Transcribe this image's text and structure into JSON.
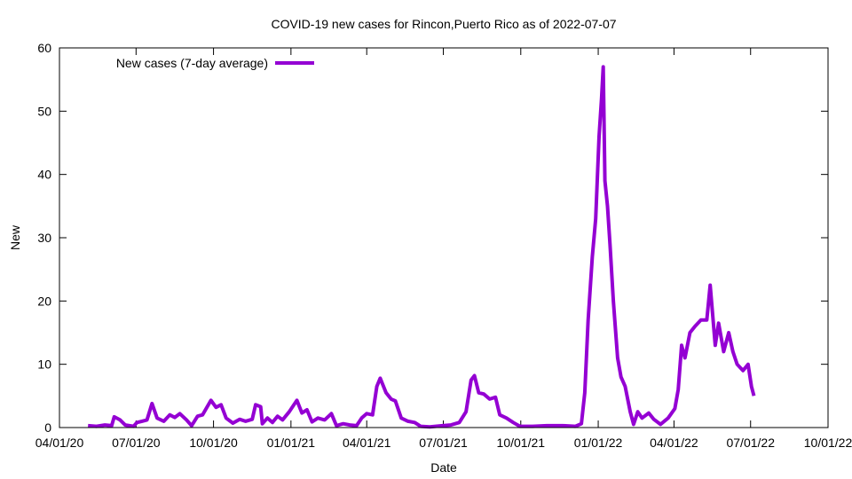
{
  "chart_data": {
    "type": "line",
    "title": "COVID-19 new cases for Rincon,Puerto Rico as of 2022-07-07",
    "xlabel": "Date",
    "ylabel": "New",
    "xlim": [
      "2020-04-01",
      "2022-10-01"
    ],
    "ylim": [
      0,
      60
    ],
    "xticks": [
      "04/01/20",
      "07/01/20",
      "10/01/20",
      "01/01/21",
      "04/01/21",
      "07/01/21",
      "10/01/21",
      "01/01/22",
      "04/01/22",
      "07/01/22",
      "10/01/22"
    ],
    "xtick_dates": [
      "2020-04-01",
      "2020-07-01",
      "2020-10-01",
      "2021-01-01",
      "2021-04-01",
      "2021-07-01",
      "2021-10-01",
      "2022-01-01",
      "2022-04-01",
      "2022-07-01",
      "2022-10-01"
    ],
    "yticks": [
      0,
      10,
      20,
      30,
      40,
      50,
      60
    ],
    "grid": false,
    "legend_position": "top-left",
    "color": "#9400d3",
    "series": [
      {
        "name": "New cases (7-day average)",
        "points": [
          [
            "2020-05-05",
            0.3
          ],
          [
            "2020-05-15",
            0.2
          ],
          [
            "2020-05-25",
            0.4
          ],
          [
            "2020-06-02",
            0.3
          ],
          [
            "2020-06-05",
            1.7
          ],
          [
            "2020-06-12",
            1.2
          ],
          [
            "2020-06-18",
            0.4
          ],
          [
            "2020-06-28",
            0.2
          ],
          [
            "2020-07-02",
            0.8
          ],
          [
            "2020-07-08",
            1.0
          ],
          [
            "2020-07-14",
            1.2
          ],
          [
            "2020-07-20",
            3.8
          ],
          [
            "2020-07-26",
            1.5
          ],
          [
            "2020-08-03",
            1.0
          ],
          [
            "2020-08-10",
            2.0
          ],
          [
            "2020-08-16",
            1.6
          ],
          [
            "2020-08-22",
            2.2
          ],
          [
            "2020-08-30",
            1.2
          ],
          [
            "2020-09-05",
            0.3
          ],
          [
            "2020-09-12",
            1.8
          ],
          [
            "2020-09-18",
            2.0
          ],
          [
            "2020-09-28",
            4.3
          ],
          [
            "2020-10-04",
            3.2
          ],
          [
            "2020-10-10",
            3.6
          ],
          [
            "2020-10-16",
            1.5
          ],
          [
            "2020-10-24",
            0.7
          ],
          [
            "2020-11-01",
            1.3
          ],
          [
            "2020-11-08",
            1.0
          ],
          [
            "2020-11-16",
            1.3
          ],
          [
            "2020-11-20",
            3.6
          ],
          [
            "2020-11-26",
            3.3
          ],
          [
            "2020-11-28",
            0.6
          ],
          [
            "2020-12-04",
            1.5
          ],
          [
            "2020-12-10",
            0.8
          ],
          [
            "2020-12-16",
            1.8
          ],
          [
            "2020-12-22",
            1.2
          ],
          [
            "2020-12-30",
            2.5
          ],
          [
            "2021-01-08",
            4.3
          ],
          [
            "2021-01-14",
            2.3
          ],
          [
            "2021-01-20",
            2.8
          ],
          [
            "2021-01-26",
            0.9
          ],
          [
            "2021-02-02",
            1.5
          ],
          [
            "2021-02-10",
            1.2
          ],
          [
            "2021-02-18",
            2.2
          ],
          [
            "2021-02-24",
            0.3
          ],
          [
            "2021-03-04",
            0.6
          ],
          [
            "2021-03-12",
            0.4
          ],
          [
            "2021-03-20",
            0.3
          ],
          [
            "2021-03-26",
            1.5
          ],
          [
            "2021-04-01",
            2.2
          ],
          [
            "2021-04-08",
            2.0
          ],
          [
            "2021-04-13",
            6.5
          ],
          [
            "2021-04-17",
            7.8
          ],
          [
            "2021-04-24",
            5.5
          ],
          [
            "2021-04-30",
            4.5
          ],
          [
            "2021-05-05",
            4.2
          ],
          [
            "2021-05-12",
            1.5
          ],
          [
            "2021-05-20",
            1.0
          ],
          [
            "2021-05-28",
            0.8
          ],
          [
            "2021-06-04",
            0.2
          ],
          [
            "2021-06-15",
            0.1
          ],
          [
            "2021-06-30",
            0.3
          ],
          [
            "2021-07-10",
            0.4
          ],
          [
            "2021-07-20",
            0.8
          ],
          [
            "2021-07-28",
            2.5
          ],
          [
            "2021-08-03",
            7.5
          ],
          [
            "2021-08-07",
            8.2
          ],
          [
            "2021-08-12",
            5.5
          ],
          [
            "2021-08-18",
            5.3
          ],
          [
            "2021-08-25",
            4.5
          ],
          [
            "2021-09-01",
            4.8
          ],
          [
            "2021-09-06",
            2.0
          ],
          [
            "2021-09-14",
            1.5
          ],
          [
            "2021-09-22",
            0.8
          ],
          [
            "2021-09-30",
            0.2
          ],
          [
            "2021-10-15",
            0.2
          ],
          [
            "2021-11-01",
            0.3
          ],
          [
            "2021-11-20",
            0.3
          ],
          [
            "2021-12-05",
            0.2
          ],
          [
            "2021-12-12",
            0.6
          ],
          [
            "2021-12-16",
            5.5
          ],
          [
            "2021-12-20",
            17
          ],
          [
            "2021-12-25",
            27
          ],
          [
            "2021-12-29",
            33
          ],
          [
            "2022-01-02",
            46
          ],
          [
            "2022-01-05",
            52
          ],
          [
            "2022-01-07",
            57
          ],
          [
            "2022-01-09",
            39
          ],
          [
            "2022-01-12",
            35
          ],
          [
            "2022-01-15",
            29
          ],
          [
            "2022-01-19",
            20
          ],
          [
            "2022-01-24",
            11
          ],
          [
            "2022-01-28",
            8
          ],
          [
            "2022-02-02",
            6.5
          ],
          [
            "2022-02-08",
            2.5
          ],
          [
            "2022-02-12",
            0.5
          ],
          [
            "2022-02-17",
            2.5
          ],
          [
            "2022-02-22",
            1.5
          ],
          [
            "2022-03-02",
            2.3
          ],
          [
            "2022-03-08",
            1.3
          ],
          [
            "2022-03-16",
            0.5
          ],
          [
            "2022-03-25",
            1.5
          ],
          [
            "2022-04-02",
            3.0
          ],
          [
            "2022-04-06",
            6.0
          ],
          [
            "2022-04-10",
            13
          ],
          [
            "2022-04-14",
            11
          ],
          [
            "2022-04-20",
            15
          ],
          [
            "2022-04-26",
            16
          ],
          [
            "2022-05-03",
            17
          ],
          [
            "2022-05-10",
            17
          ],
          [
            "2022-05-14",
            22.5
          ],
          [
            "2022-05-20",
            13
          ],
          [
            "2022-05-24",
            16.5
          ],
          [
            "2022-05-30",
            12
          ],
          [
            "2022-06-05",
            15
          ],
          [
            "2022-06-10",
            12
          ],
          [
            "2022-06-15",
            10
          ],
          [
            "2022-06-22",
            9
          ],
          [
            "2022-06-28",
            10
          ],
          [
            "2022-07-02",
            6.5
          ],
          [
            "2022-07-05",
            5.0
          ]
        ]
      }
    ]
  }
}
